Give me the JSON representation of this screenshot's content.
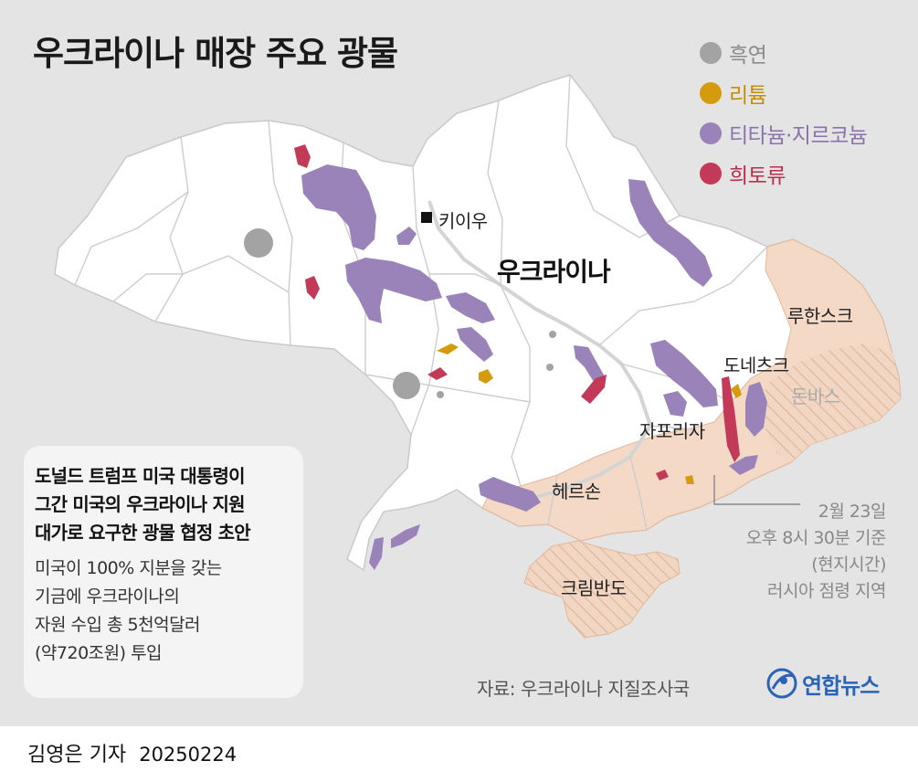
{
  "title": "우크라이나 매장 주요 광물",
  "legend": [
    {
      "label": "흑연",
      "color": "#a3a3a3",
      "text_color": "#8a8a8a"
    },
    {
      "label": "리튬",
      "color": "#d49b0c",
      "text_color": "#c48d08"
    },
    {
      "label": "티타늄·지르코늄",
      "color": "#9a83b8",
      "text_color": "#8a72ab"
    },
    {
      "label": "희토류",
      "color": "#c33a58",
      "text_color": "#b8304e"
    }
  ],
  "labels": {
    "capital": "키이우",
    "country": "우크라이나",
    "luhansk": "루한스크",
    "donetsk": "도네츠크",
    "donbas": "돈바스",
    "zaporizhzhia": "자포리자",
    "kherson": "헤르손",
    "crimea": "크림반도"
  },
  "occupation_note": [
    "2월 23일",
    "오후 8시 30분 기준",
    "(현지시간)",
    "러시아 점령 지역"
  ],
  "info_box": {
    "headline": [
      "도널드 트럼프 미국 대통령이",
      "그간 미국의 우크라이나 지원",
      "대가로 요구한 광물 협정 초안"
    ],
    "body": [
      "미국이 100% 지분을 갖는",
      "기금에 우크라이나의",
      "자원 수입 총 5천억달러",
      "(약720조원) 투입"
    ]
  },
  "source": "자료: 우크라이나 지질조사국",
  "agency": "연합뉴스",
  "byline": {
    "reporter": "김영은 기자",
    "date": "20250224"
  }
}
